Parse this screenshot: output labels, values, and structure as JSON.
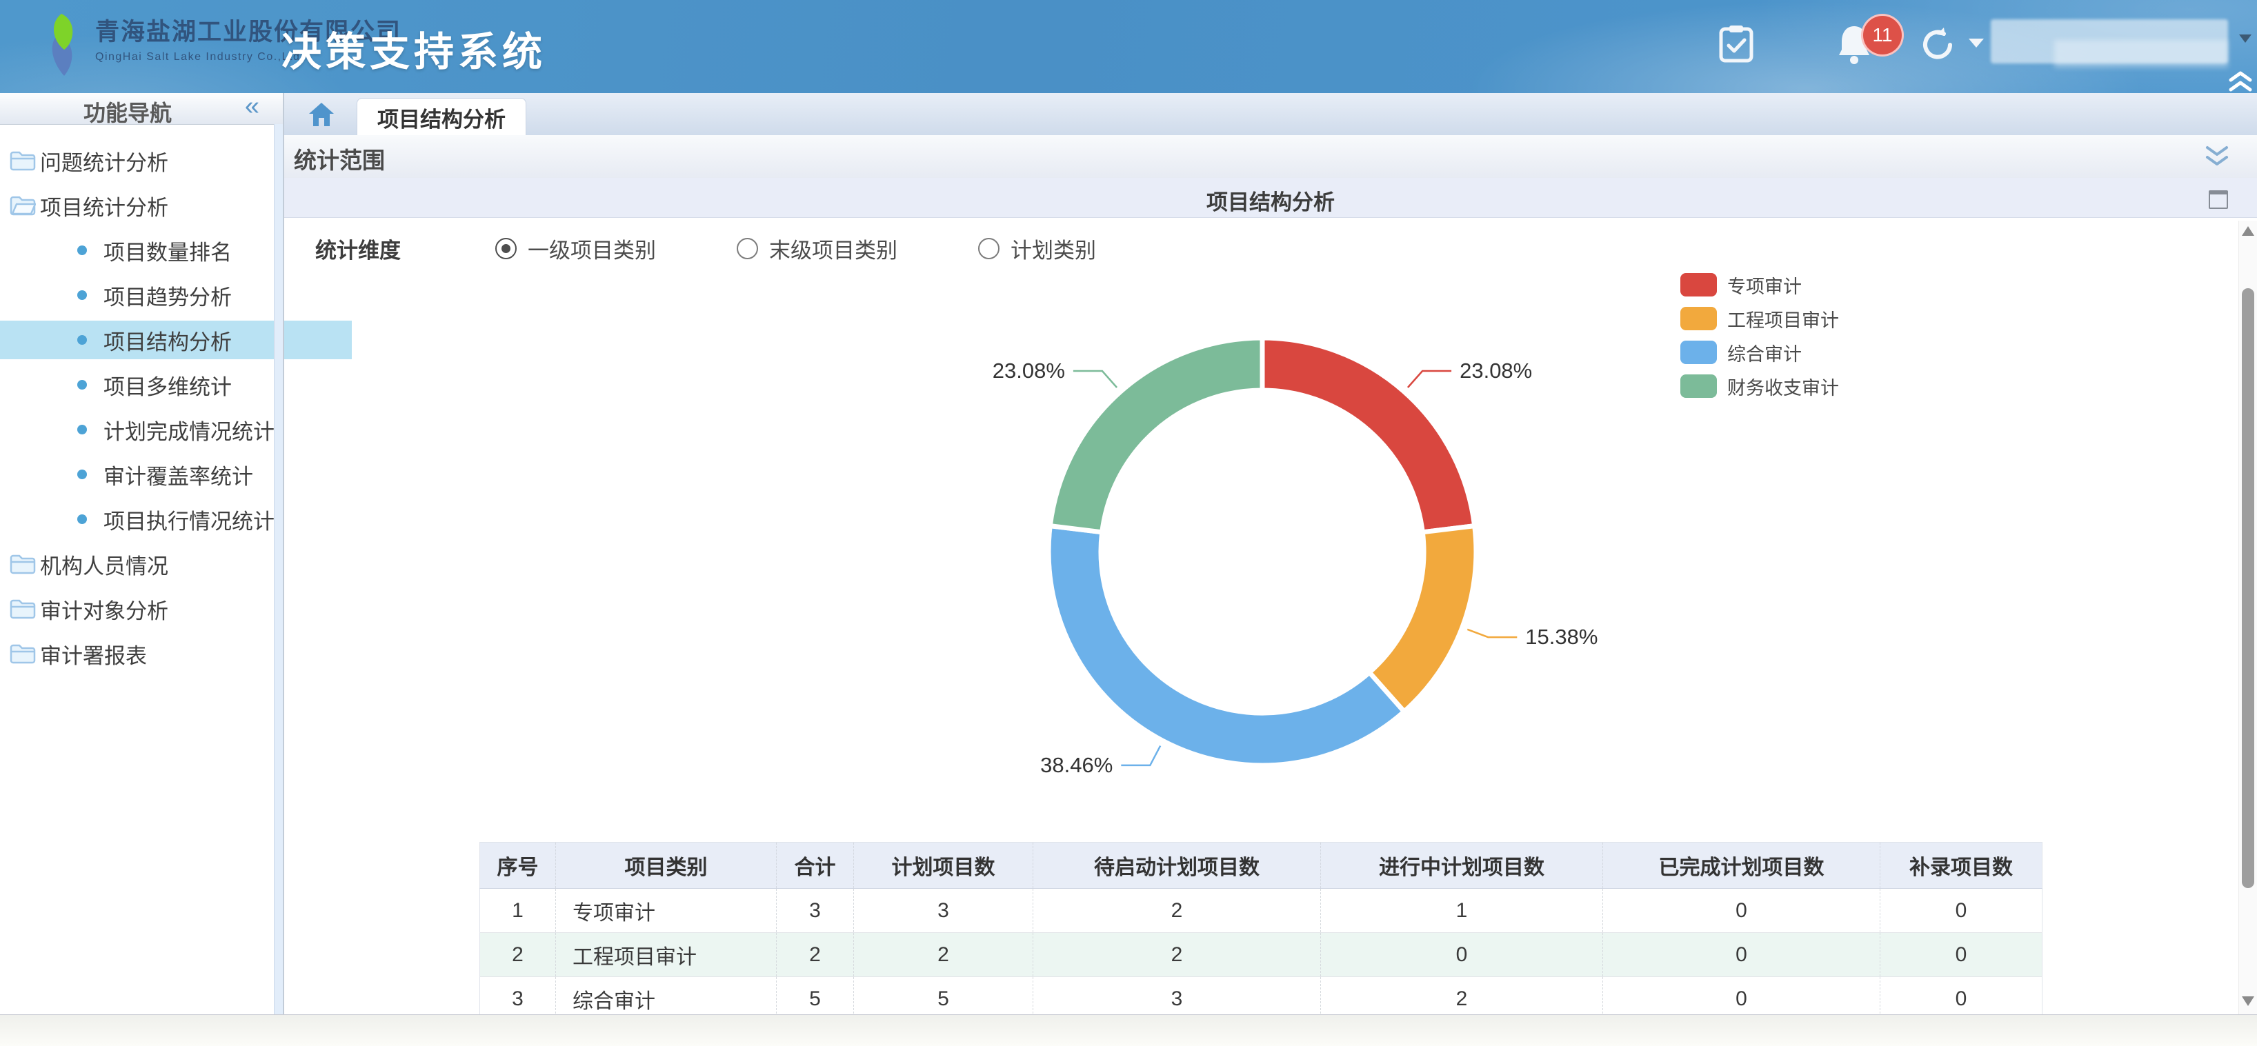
{
  "header": {
    "company_cn": "青海盐湖工业股份有限公司",
    "company_en": "QingHai Salt Lake Industry Co.,Ltd.",
    "app_title": "决策支持系统",
    "notification_count": "11"
  },
  "sidebar": {
    "title": "功能导航",
    "collapse_glyph": "«",
    "items": [
      {
        "label": "问题统计分析",
        "type": "folder",
        "active": false
      },
      {
        "label": "项目统计分析",
        "type": "folder-open",
        "active": false
      },
      {
        "label": "项目数量排名",
        "type": "leaf",
        "active": false
      },
      {
        "label": "项目趋势分析",
        "type": "leaf",
        "active": false
      },
      {
        "label": "项目结构分析",
        "type": "leaf",
        "active": true
      },
      {
        "label": "项目多维统计",
        "type": "leaf",
        "active": false
      },
      {
        "label": "计划完成情况统计",
        "type": "leaf",
        "active": false
      },
      {
        "label": "审计覆盖率统计",
        "type": "leaf",
        "active": false
      },
      {
        "label": "项目执行情况统计",
        "type": "leaf",
        "active": false
      },
      {
        "label": "机构人员情况",
        "type": "folder",
        "active": false
      },
      {
        "label": "审计对象分析",
        "type": "folder",
        "active": false
      },
      {
        "label": "审计署报表",
        "type": "folder",
        "active": false
      }
    ]
  },
  "tabs": {
    "active_tab": "项目结构分析"
  },
  "filter_panel": {
    "title": "统计范围"
  },
  "analysis": {
    "title": "项目结构分析",
    "dimension_label": "统计维度",
    "options": [
      {
        "label": "一级项目类别",
        "selected": true
      },
      {
        "label": "末级项目类别",
        "selected": false
      },
      {
        "label": "计划类别",
        "selected": false
      }
    ]
  },
  "chart_data": {
    "type": "pie",
    "title": "项目结构分析",
    "legend_position": "top-right",
    "donut": true,
    "series": [
      {
        "name": "专项审计",
        "value": 3,
        "percent": "23.08%",
        "color": "#d9473f"
      },
      {
        "name": "工程项目审计",
        "value": 2,
        "percent": "15.38%",
        "color": "#f2a93d"
      },
      {
        "name": "综合审计",
        "value": 5,
        "percent": "38.46%",
        "color": "#6cb1ea"
      },
      {
        "name": "财务收支审计",
        "value": 3,
        "percent": "23.08%",
        "color": "#7cbb99"
      }
    ]
  },
  "table": {
    "headers": [
      "序号",
      "项目类别",
      "合计",
      "计划项目数",
      "待启动计划项目数",
      "进行中计划项目数",
      "已完成计划项目数",
      "补录项目数"
    ],
    "rows": [
      [
        "1",
        "专项审计",
        "3",
        "3",
        "2",
        "1",
        "0",
        "0"
      ],
      [
        "2",
        "工程项目审计",
        "2",
        "2",
        "2",
        "0",
        "0",
        "0"
      ],
      [
        "3",
        "综合审计",
        "5",
        "5",
        "3",
        "2",
        "0",
        "0"
      ]
    ]
  },
  "colors": {
    "header_blue": "#4a90c6",
    "active_menu_bg": "#b9e2f3",
    "title_band_bg": "#e9edf8",
    "table_header_bg": "#e8edf7",
    "table_alt_row_bg": "#ecf6f2",
    "badge_red": "#dd5148"
  }
}
